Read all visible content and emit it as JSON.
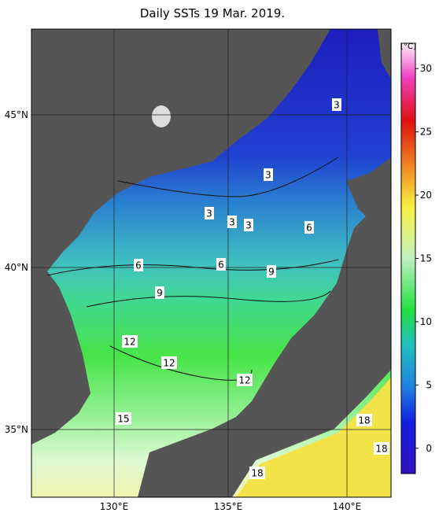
{
  "title": "Daily SSTs 19 Mar. 2019.",
  "longitude_labels": [
    "130°E",
    "135°E",
    "140°E"
  ],
  "latitude_labels": [
    "35°N",
    "40°N",
    "45°N"
  ],
  "colorbar": {
    "unit": "[°C]",
    "range": [
      -2,
      32
    ],
    "ticks": [
      0,
      5,
      10,
      15,
      20,
      25,
      30
    ]
  },
  "contour_labels": [
    "3",
    "3",
    "3",
    "3",
    "3",
    "6",
    "6",
    "6",
    "9",
    "9",
    "12",
    "12",
    "12",
    "15",
    "18",
    "18",
    "18"
  ]
}
